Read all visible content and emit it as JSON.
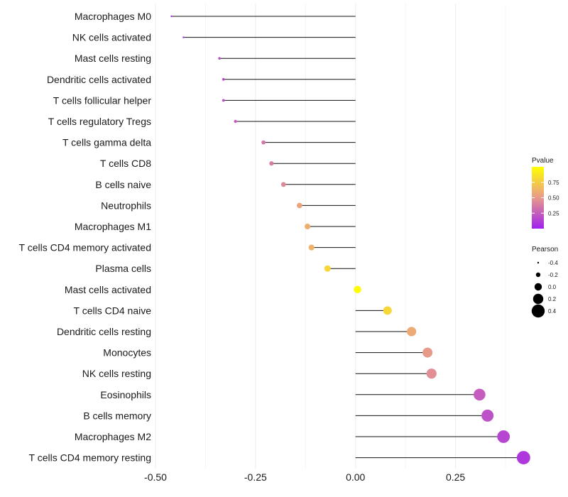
{
  "chart_data": {
    "type": "lollipop",
    "xlim": [
      -0.5,
      0.43
    ],
    "xticks": [
      "-0.50",
      "-0.25",
      "0.00",
      "0.25"
    ],
    "xtick_values": [
      -0.5,
      -0.25,
      0.0,
      0.25
    ],
    "grid": true,
    "legend_position": "right",
    "categories": [
      "Macrophages M0",
      "NK cells activated",
      "Mast cells resting",
      "Dendritic cells activated",
      "T cells follicular helper",
      "T cells regulatory  Tregs",
      "T cells gamma delta",
      "T cells CD8",
      "B cells naive",
      "Neutrophils",
      "Macrophages M1",
      "T cells CD4 memory activated",
      "Plasma cells",
      "Mast cells activated",
      "T cells CD4 naive",
      "Dendritic cells resting",
      "Monocytes",
      "NK cells resting",
      "Eosinophils",
      "B cells memory",
      "Macrophages M2",
      "T cells CD4 memory resting"
    ],
    "pearson": [
      -0.46,
      -0.43,
      -0.34,
      -0.33,
      -0.33,
      -0.3,
      -0.23,
      -0.21,
      -0.18,
      -0.14,
      -0.12,
      -0.11,
      -0.07,
      0.005,
      0.08,
      0.14,
      0.18,
      0.19,
      0.31,
      0.33,
      0.37,
      0.42
    ],
    "pvalue": [
      0.03,
      0.04,
      0.18,
      0.18,
      0.18,
      0.25,
      0.36,
      0.38,
      0.43,
      0.55,
      0.6,
      0.62,
      0.8,
      0.98,
      0.8,
      0.58,
      0.5,
      0.45,
      0.25,
      0.2,
      0.15,
      0.1
    ],
    "color_legend": {
      "title": "Pvalue",
      "ticks": [
        "0.75",
        "0.50",
        "0.25"
      ],
      "tick_values": [
        0.75,
        0.5,
        0.25
      ],
      "range": [
        0.0,
        1.0
      ],
      "low_color": "#a020f0",
      "mid_color": "#e89a8a",
      "high_color": "#ffff00"
    },
    "size_legend": {
      "title": "Pearson",
      "labels": [
        "-0.4",
        "-0.2",
        "0.0",
        "0.2",
        "0.4"
      ],
      "values": [
        -0.4,
        -0.2,
        0.0,
        0.2,
        0.4
      ]
    }
  }
}
